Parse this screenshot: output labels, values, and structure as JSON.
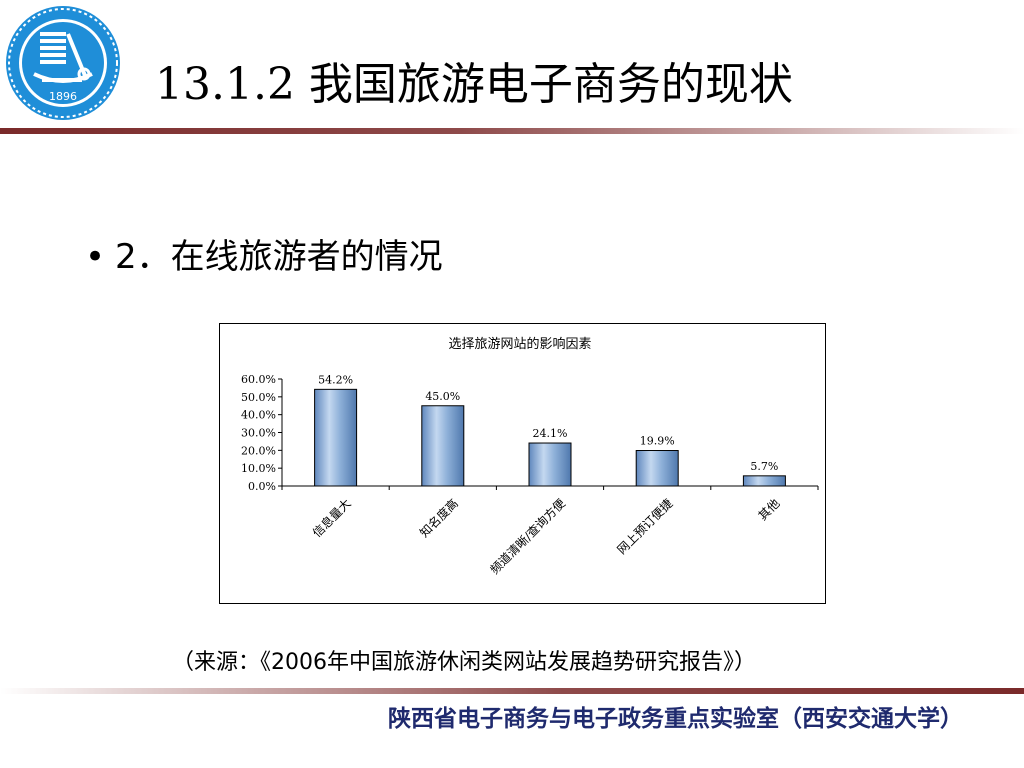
{
  "header": {
    "logo_year": "1896",
    "title": "13.1.2 我国旅游电子商务的现状"
  },
  "content": {
    "bullet_symbol": "•",
    "bullet_text": "2．在线旅游者的情况"
  },
  "chart_data": {
    "type": "bar",
    "title": "选择旅游网站的影响因素",
    "categories": [
      "信息量大",
      "知名度高",
      "频道清晰/查询方便",
      "网上预订便捷",
      "其他"
    ],
    "values": [
      54.2,
      45.0,
      24.1,
      19.9,
      5.7
    ],
    "value_labels": [
      "54.2%",
      "45.0%",
      "24.1%",
      "19.9%",
      "5.7%"
    ],
    "y_ticks": [
      "0.0%",
      "10.0%",
      "20.0%",
      "30.0%",
      "40.0%",
      "50.0%",
      "60.0%"
    ],
    "ylim": [
      0,
      60
    ],
    "xlabel": "",
    "ylabel": "",
    "grid": false,
    "bar_color": "#8fb1d9"
  },
  "source": {
    "text": "（来源：《2006年中国旅游休闲类网站发展趋势研究报告》）"
  },
  "footer": {
    "text": "陕西省电子商务与电子政务重点实验室（西安交通大学）",
    "color": "#1f2a6e"
  },
  "colors": {
    "logo_blue": "#1f8ed8",
    "rule_brown": "#7a2a2a"
  }
}
